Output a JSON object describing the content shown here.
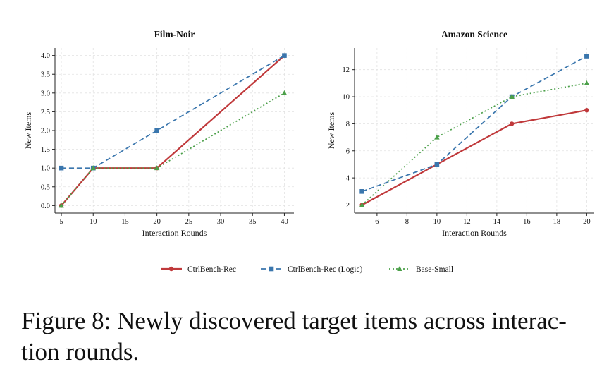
{
  "figure": {
    "caption": "Figure 8: Newly discovered target items across interac- tion rounds.",
    "caption_lines": [
      "Figure 8: Newly discovered target items across interac-",
      "tion rounds."
    ]
  },
  "legend": [
    {
      "name": "CtrlBench-Rec",
      "color": "#c0393b",
      "dash": "solid",
      "marker": "circle"
    },
    {
      "name": "CtrlBench-Rec (Logic)",
      "color": "#3a76ad",
      "dash": "dashed",
      "marker": "square"
    },
    {
      "name": "Base-Small",
      "color": "#4ca04a",
      "dash": "dotted",
      "marker": "triangle"
    }
  ],
  "chart_data": [
    {
      "type": "line",
      "title": "Film-Noir",
      "xlabel": "Interaction Rounds",
      "ylabel": "New Items",
      "xlim": [
        4,
        41.5
      ],
      "ylim": [
        -0.2,
        4.2
      ],
      "xticks": [
        5,
        10,
        15,
        20,
        25,
        30,
        35,
        40
      ],
      "yticks": [
        "0.0",
        "0.5",
        "1.0",
        "1.5",
        "2.0",
        "2.5",
        "3.0",
        "3.5",
        "4.0"
      ],
      "grid": true,
      "x": [
        5,
        10,
        20,
        40
      ],
      "series": [
        {
          "name": "CtrlBench-Rec",
          "values": [
            0,
            1,
            1,
            4
          ]
        },
        {
          "name": "CtrlBench-Rec (Logic)",
          "values": [
            1,
            1,
            2,
            4
          ]
        },
        {
          "name": "Base-Small",
          "values": [
            0,
            1,
            1,
            3
          ]
        }
      ]
    },
    {
      "type": "line",
      "title": "Amazon Science",
      "xlabel": "Interaction Rounds",
      "ylabel": "New Items",
      "xlim": [
        4.5,
        20.5
      ],
      "ylim": [
        1.4,
        13.6
      ],
      "xticks": [
        6,
        8,
        10,
        12,
        14,
        16,
        18,
        20
      ],
      "yticks": [
        "2",
        "4",
        "6",
        "8",
        "10",
        "12"
      ],
      "grid": true,
      "x": [
        5,
        10,
        15,
        20
      ],
      "series": [
        {
          "name": "CtrlBench-Rec",
          "values": [
            2,
            5,
            8,
            9
          ]
        },
        {
          "name": "CtrlBench-Rec (Logic)",
          "values": [
            3,
            5,
            10,
            13
          ]
        },
        {
          "name": "Base-Small",
          "values": [
            2,
            7,
            10,
            11
          ]
        }
      ]
    }
  ]
}
